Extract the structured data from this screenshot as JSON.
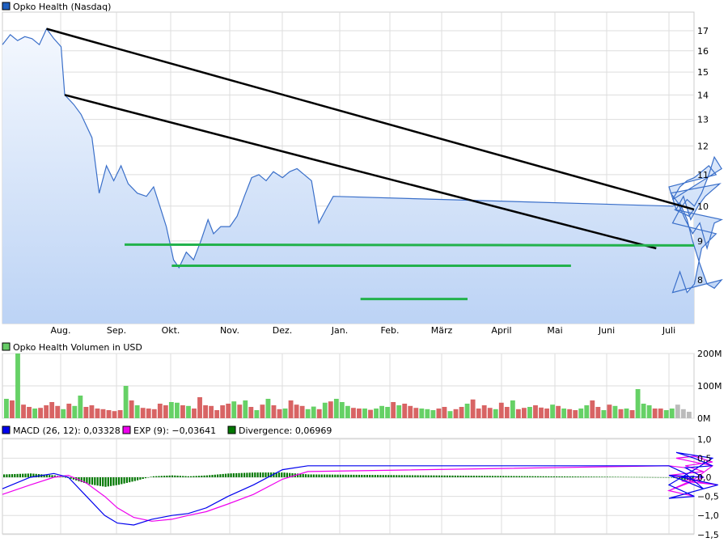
{
  "chart_data": [
    {
      "type": "area",
      "legend": "Opko Health (Nasdaq)",
      "legend_color": "#1f5fbf",
      "scale": "log",
      "ylim": [
        7.1,
        17.6
      ],
      "yticks": [
        8,
        9,
        10,
        11,
        12,
        13,
        14,
        15,
        16,
        17
      ],
      "xticks": [
        "Aug.",
        "Sep.",
        "Okt.",
        "Nov.",
        "Dez.",
        "Jan.",
        "Feb.",
        "März",
        "April",
        "Mai",
        "Juni",
        "Juli"
      ],
      "grid": true,
      "line_color": "#3a6fc9",
      "fill_color": "#bcd3f5",
      "x": [
        "07-01",
        "07-04",
        "07-08",
        "07-12",
        "07-16",
        "07-20",
        "07-24",
        "07-28",
        "08-01",
        "08-03",
        "08-08",
        "08-12",
        "08-18",
        "08-22",
        "08-26",
        "08-30",
        "09-03",
        "09-07",
        "09-12",
        "09-17",
        "09-21",
        "09-25",
        "09-28",
        "10-02",
        "10-05",
        "10-09",
        "10-13",
        "10-17",
        "10-21",
        "10-24",
        "10-28",
        "11-02",
        "11-06",
        "11-10",
        "11-14",
        "11-18",
        "11-22",
        "11-26",
        "12-01",
        "12-05",
        "12-09",
        "12-13",
        "12-17",
        "12-21",
        "12-25",
        "12-29",
        "01-03",
        "01-07",
        "01-11",
        "01-14",
        "01-18",
        "01-22",
        "01-26",
        "01-30",
        "02-03",
        "02-07",
        "02-11",
        "02-15",
        "02-19",
        "02-23",
        "02-27",
        "03-03",
        "03-07",
        "03-11",
        "03-15",
        "03-19",
        "03-23",
        "03-26",
        "03-30",
        "04-03",
        "04-07",
        "04-11",
        "04-15",
        "04-19",
        "04-23",
        "04-27",
        "05-01",
        "05-05",
        "05-09",
        "05-13",
        "05-17",
        "05-21",
        "05-25",
        "05-29",
        "06-02",
        "06-06",
        "06-10",
        "06-14",
        "06-18",
        "06-22",
        "06-26",
        "06-30",
        "07-04",
        "07-08",
        "07-12",
        "07-15"
      ],
      "y": [
        16.3,
        16.8,
        16.5,
        16.7,
        16.6,
        16.3,
        17.1,
        16.6,
        16.2,
        14.0,
        13.6,
        13.2,
        12.3,
        10.4,
        11.3,
        10.8,
        11.3,
        10.7,
        10.4,
        10.3,
        10.6,
        9.9,
        9.4,
        8.5,
        8.3,
        8.7,
        8.5,
        9.0,
        9.6,
        9.2,
        9.4,
        9.4,
        9.7,
        10.3,
        10.9,
        11.0,
        10.8,
        11.1,
        10.9,
        11.1,
        11.2,
        11.0,
        10.8,
        9.5,
        9.9,
        10.3,
        10.0,
        10.1,
        9.6,
        9.0,
        8.4,
        7.9,
        7.8,
        8.0,
        7.7,
        8.2,
        7.7,
        7.9,
        8.8,
        9.0,
        9.2,
        9.5,
        9.9,
        10.2,
        10.0,
        10.4,
        11.0,
        11.6,
        11.2,
        10.2,
        10.6,
        10.8,
        10.9,
        11.1,
        11.3,
        11.0,
        10.6,
        9.9,
        10.3,
        9.6,
        10.0,
        10.3,
        10.5,
        10.7,
        10.4,
        10.1,
        9.6,
        9.2,
        9.5,
        8.8,
        9.5,
        9.6,
        9.9,
        9.8,
        9.7,
        9.9
      ],
      "trendlines": [
        {
          "color": "#000000",
          "from": [
            "07-24",
            17.1
          ],
          "to": [
            "07-15",
            9.9
          ]
        },
        {
          "color": "#000000",
          "from": [
            "08-03",
            14.0
          ],
          "to": [
            "06-24",
            8.8
          ]
        },
        {
          "color": "#22b24c",
          "from": [
            "09-05",
            8.9
          ],
          "to": [
            "07-15",
            8.88
          ]
        },
        {
          "color": "#22b24c",
          "from": [
            "10-01",
            8.35
          ],
          "to": [
            "05-08",
            8.35
          ]
        },
        {
          "color": "#22b24c",
          "from": [
            "01-13",
            7.55
          ],
          "to": [
            "03-12",
            7.55
          ]
        }
      ]
    },
    {
      "type": "bar",
      "legend": "Opko Health Volumen in USD",
      "legend_color": "#66cc66",
      "yticks": [
        "0M",
        "100M",
        "200M"
      ],
      "ylim": [
        0,
        200
      ],
      "up_color": "#66d166",
      "down_color": "#d86464",
      "flat_color": "#bbbbbb",
      "values": [
        60,
        55,
        200,
        42,
        35,
        30,
        32,
        40,
        50,
        38,
        28,
        45,
        38,
        70,
        35,
        40,
        30,
        28,
        25,
        22,
        25,
        100,
        55,
        40,
        32,
        30,
        28,
        45,
        40,
        50,
        48,
        40,
        38,
        30,
        65,
        40,
        38,
        25,
        40,
        45,
        52,
        42,
        55,
        35,
        25,
        42,
        60,
        40,
        28,
        30,
        55,
        42,
        38,
        28,
        36,
        28,
        48,
        52,
        60,
        50,
        38,
        32,
        30,
        30,
        26,
        30,
        38,
        35,
        50,
        40,
        45,
        38,
        32,
        30,
        28,
        25,
        30,
        35,
        22,
        28,
        35,
        45,
        58,
        30,
        40,
        32,
        28,
        48,
        35,
        55,
        28,
        32,
        35,
        40,
        33,
        30,
        42,
        38,
        30,
        28,
        25,
        30,
        40,
        55,
        35,
        25,
        42,
        38,
        28,
        30,
        25,
        90,
        45,
        40,
        30,
        30,
        25,
        30,
        42,
        28,
        20
      ],
      "colors": "grgrrgrrrrgrggrrrrrrrgrgrrrrrggrgrrrrrrrgrgrgrgrrgrrrggrgrgggrrgrgggrgrrrgggrrgrrgrrrrgrrgrrgrrrgrgrrggrrgrgrgrgggrrgg"
    },
    {
      "type": "line",
      "legend": [
        {
          "label": "MACD (26, 12): 0,03328",
          "color": "#0000ee"
        },
        {
          "label": "EXP (9): −0,03641",
          "color": "#ee00ee"
        },
        {
          "label": "Divergence: 0,06969",
          "color": "#007700"
        }
      ],
      "ylim": [
        -1.5,
        1.0
      ],
      "yticks": [
        "1,0",
        "0,5",
        "0,0",
        "−0,5",
        "−1,0",
        "−1,5"
      ],
      "x": [
        "07-01",
        "07-15",
        "07-28",
        "08-05",
        "08-15",
        "08-25",
        "09-01",
        "09-10",
        "09-20",
        "10-01",
        "10-10",
        "10-20",
        "11-01",
        "11-15",
        "12-01",
        "12-15",
        "01-01",
        "01-10",
        "01-20",
        "02-01",
        "02-15",
        "03-01",
        "03-15",
        "03-25",
        "04-05",
        "04-15",
        "04-25",
        "05-10",
        "05-20",
        "06-01",
        "06-10",
        "06-20",
        "06-28",
        "07-08",
        "07-15"
      ],
      "macd": [
        -0.3,
        0.0,
        0.1,
        0.0,
        -0.5,
        -1.0,
        -1.2,
        -1.25,
        -1.1,
        -1.0,
        -0.95,
        -0.8,
        -0.5,
        -0.2,
        0.2,
        0.3,
        0.3,
        0.1,
        -0.3,
        -0.55,
        -0.5,
        -0.2,
        0.2,
        0.5,
        0.65,
        0.5,
        0.3,
        0.25,
        0.0,
        0.05,
        -0.1,
        -0.3,
        -0.2,
        0.0,
        0.03
      ],
      "exp": [
        -0.45,
        -0.2,
        0.0,
        0.05,
        -0.15,
        -0.5,
        -0.8,
        -1.05,
        -1.15,
        -1.1,
        -1.0,
        -0.9,
        -0.7,
        -0.45,
        -0.05,
        0.15,
        0.3,
        0.25,
        0.0,
        -0.35,
        -0.5,
        -0.35,
        -0.05,
        0.3,
        0.5,
        0.55,
        0.4,
        0.3,
        0.15,
        0.05,
        0.0,
        -0.15,
        -0.2,
        -0.1,
        -0.04
      ]
    }
  ]
}
